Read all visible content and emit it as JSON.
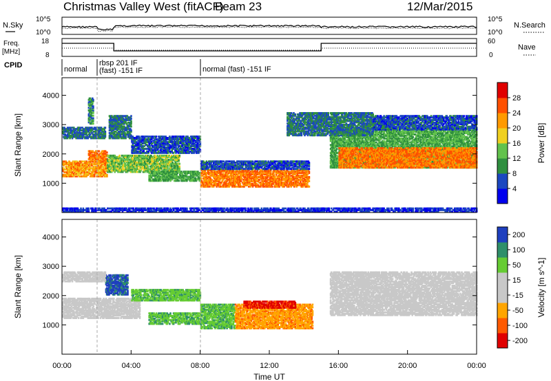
{
  "header": {
    "station": "Christmas Valley West (fitACF)",
    "beam": "Beam 23",
    "date": "12/Mar/2015"
  },
  "colors": {
    "power_scale": [
      "#0000ee",
      "#1b47c0",
      "#2f8f3f",
      "#62c24c",
      "#f0d020",
      "#ff9a00",
      "#ff5000",
      "#e00000"
    ],
    "velocity_scale": [
      "#e00000",
      "#ff5a00",
      "#ffa500",
      "#c8c8c8",
      "#c8c8c8",
      "#66cc33",
      "#2f8f6a",
      "#1e3fbf"
    ],
    "ground_scatter": "#c8c8c8"
  },
  "chart_data": [
    {
      "type": "line",
      "name": "noise-panel",
      "left_label": "N.Sky",
      "right_label": "N.Search",
      "left_ticks": [
        "10^5",
        "10^0"
      ],
      "right_ticks": [
        "10^5",
        "10^0"
      ]
    },
    {
      "type": "line",
      "name": "freq-nave-panel",
      "left_label": [
        "Freq.",
        "[MHz]"
      ],
      "right_label": "Nave",
      "left_ticks": [
        "18",
        "8"
      ],
      "right_ticks": [
        "60",
        "0"
      ],
      "freq_steps": [
        {
          "x0": 0,
          "x1": 3,
          "level": "high"
        },
        {
          "x0": 3,
          "x1": 15,
          "level": "low"
        },
        {
          "x0": 15,
          "x1": 24,
          "level": "high"
        }
      ]
    },
    {
      "type": "table",
      "name": "cpid-strip",
      "label": "CPID",
      "segments": [
        {
          "start": 0,
          "text": [
            "normal"
          ]
        },
        {
          "start": 2,
          "text": [
            "rbsp 201 IF",
            "(fast) -151 IF"
          ]
        },
        {
          "start": 8,
          "text": [
            "normal (fast) -151 IF"
          ]
        }
      ],
      "dividers": [
        2,
        8
      ]
    },
    {
      "type": "heatmap",
      "name": "power",
      "ylabel": "Slant Range [km]",
      "yticks": [
        1000,
        2000,
        3000,
        4000
      ],
      "ylim": [
        0,
        4600
      ],
      "xlim": [
        0,
        24
      ],
      "colorbar_label": "Power [dB]",
      "colorbar_ticks": [
        4,
        8,
        12,
        16,
        20,
        24,
        28
      ],
      "colorbar_range": [
        0,
        32
      ],
      "bands": [
        {
          "x0": 0,
          "x1": 2.6,
          "ymin": 1200,
          "ymax": 1750,
          "value": 22
        },
        {
          "x0": 1.5,
          "x1": 2.6,
          "ymin": 1700,
          "ymax": 2100,
          "value": 24
        },
        {
          "x0": 2.6,
          "x1": 6.8,
          "ymin": 1350,
          "ymax": 1950,
          "value": 14
        },
        {
          "x0": 5,
          "x1": 8,
          "ymin": 1050,
          "ymax": 1400,
          "value": 12
        },
        {
          "x0": 8,
          "x1": 14.3,
          "ymin": 850,
          "ymax": 1450,
          "value": 24
        },
        {
          "x0": 8,
          "x1": 14.3,
          "ymin": 1450,
          "ymax": 1750,
          "value": 6
        },
        {
          "x0": 15.5,
          "x1": 24,
          "ymin": 1500,
          "ymax": 2900,
          "value": 12
        },
        {
          "x0": 16,
          "x1": 24,
          "ymin": 1500,
          "ymax": 2200,
          "value": 24
        },
        {
          "x0": 0,
          "x1": 2.5,
          "ymin": 2500,
          "ymax": 2900,
          "value": 8
        },
        {
          "x0": 2.7,
          "x1": 4,
          "ymin": 2500,
          "ymax": 3300,
          "value": 8
        },
        {
          "x0": 1.5,
          "x1": 1.8,
          "ymin": 3000,
          "ymax": 3900,
          "value": 10
        },
        {
          "x0": 4,
          "x1": 8,
          "ymin": 2000,
          "ymax": 2600,
          "value": 6
        },
        {
          "x0": 13,
          "x1": 18,
          "ymin": 2600,
          "ymax": 3400,
          "value": 8
        },
        {
          "x0": 18,
          "x1": 24,
          "ymin": 2800,
          "ymax": 3300,
          "value": 6
        },
        {
          "x0": 0,
          "x1": 24,
          "ymin": 0,
          "ymax": 150,
          "value": 4
        }
      ]
    },
    {
      "type": "heatmap",
      "name": "velocity",
      "ylabel": "Slant Range [km]",
      "xlabel": "Time UT",
      "xticks": [
        "00:00",
        "04:00",
        "08:00",
        "12:00",
        "16:00",
        "20:00",
        "00:00"
      ],
      "xtick_values": [
        0,
        4,
        8,
        12,
        16,
        20,
        24
      ],
      "yticks": [
        1000,
        2000,
        3000,
        4000
      ],
      "ylim": [
        0,
        4600
      ],
      "xlim": [
        0,
        24
      ],
      "colorbar_label": "Velocity [m s^-1]",
      "colorbar_ticks": [
        "200",
        "100",
        "50",
        "15",
        "-15",
        "-50",
        "-100",
        "-200"
      ],
      "bands": [
        {
          "x0": 0,
          "x1": 4.5,
          "ymin": 1200,
          "ymax": 1900,
          "value": "ground"
        },
        {
          "x0": 2.5,
          "x1": 3.8,
          "ymin": 2000,
          "ymax": 2700,
          "value": "positive-fast"
        },
        {
          "x0": 4,
          "x1": 8,
          "ymin": 1800,
          "ymax": 2200,
          "value": "positive-slow"
        },
        {
          "x0": 5,
          "x1": 8,
          "ymin": 1000,
          "ymax": 1400,
          "value": "positive-slow"
        },
        {
          "x0": 8,
          "x1": 10,
          "ymin": 850,
          "ymax": 1700,
          "value": "positive-slow"
        },
        {
          "x0": 10,
          "x1": 14.5,
          "ymin": 850,
          "ymax": 1700,
          "value": "negative-slow"
        },
        {
          "x0": 10.5,
          "x1": 13.5,
          "ymin": 1550,
          "ymax": 1800,
          "value": "negative-fast"
        },
        {
          "x0": 15.5,
          "x1": 24,
          "ymin": 1300,
          "ymax": 2800,
          "value": "ground"
        },
        {
          "x0": 0,
          "x1": 2.5,
          "ymin": 2450,
          "ymax": 2800,
          "value": "ground"
        }
      ]
    }
  ]
}
